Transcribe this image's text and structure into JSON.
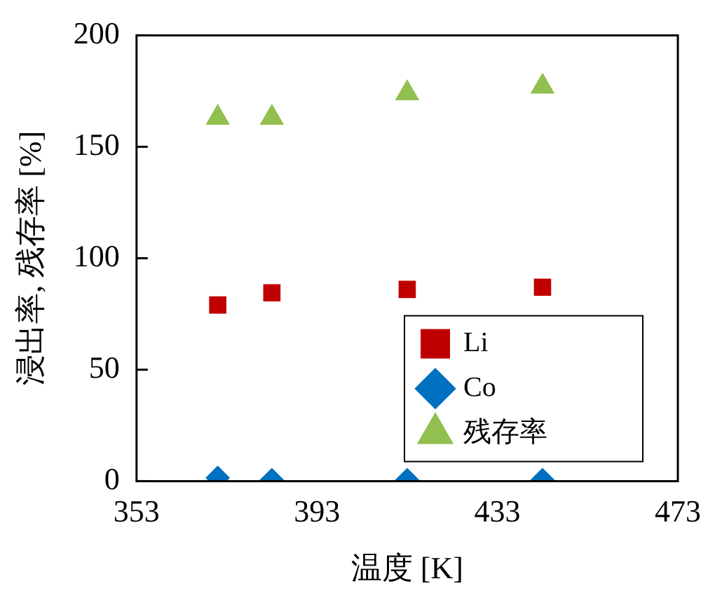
{
  "chart_data": {
    "type": "scatter",
    "xlabel": "温度 [K]",
    "ylabel": "浸出率, 残存率 [%]",
    "x": [
      371,
      383,
      413,
      443
    ],
    "xlim": [
      353,
      473
    ],
    "xticks": [
      353,
      393,
      433,
      473
    ],
    "ylim": [
      0,
      200
    ],
    "yticks": [
      0,
      50,
      100,
      150,
      200
    ],
    "grid": false,
    "legend": "bottom right",
    "series": [
      {
        "name": "Li",
        "color": "#c00000",
        "marker": "square",
        "values": [
          79,
          84.5,
          86,
          87
        ]
      },
      {
        "name": "Co",
        "color": "#0070c0",
        "marker": "diamond",
        "values": [
          1.5,
          0.5,
          0.5,
          0.5
        ]
      },
      {
        "name": "残存率",
        "color": "#92c050",
        "marker": "triangle",
        "values": [
          163,
          163,
          174,
          177
        ]
      }
    ]
  }
}
